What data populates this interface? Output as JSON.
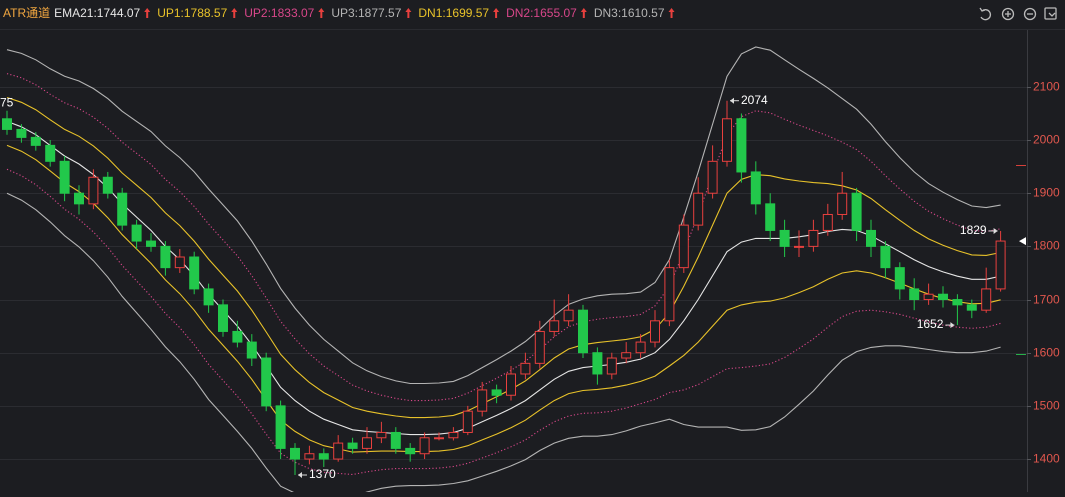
{
  "chart_data": {
    "type": "candlestick",
    "title": "ATR通道",
    "ylim": [
      1338,
      2207
    ],
    "yticks": [
      1400,
      1500,
      1600,
      1700,
      1800,
      1900,
      2000,
      2100
    ],
    "grid": true,
    "up_color": "#e8403e",
    "down_color": "#22c84b",
    "candles": {
      "open": [
        2040,
        2020,
        2005,
        1990,
        1960,
        1900,
        1880,
        1930,
        1900,
        1840,
        1810,
        1800,
        1760,
        1780,
        1720,
        1690,
        1640,
        1620,
        1590,
        1500,
        1420,
        1400,
        1410,
        1400,
        1430,
        1420,
        1440,
        1450,
        1420,
        1410,
        1440,
        1440,
        1450,
        1490,
        1530,
        1520,
        1560,
        1580,
        1640,
        1660,
        1680,
        1600,
        1560,
        1590,
        1600,
        1620,
        1660,
        1760,
        1840,
        1900,
        1960,
        2040,
        1940,
        1880,
        1830,
        1800,
        1800,
        1830,
        1860,
        1900,
        1830,
        1800,
        1760,
        1720,
        1700,
        1710,
        1700,
        1690,
        1680,
        1720
      ],
      "high": [
        2055,
        2030,
        2015,
        2000,
        1970,
        1915,
        1945,
        1940,
        1910,
        1850,
        1825,
        1810,
        1795,
        1790,
        1730,
        1700,
        1660,
        1635,
        1600,
        1510,
        1430,
        1425,
        1420,
        1445,
        1440,
        1460,
        1470,
        1460,
        1430,
        1450,
        1450,
        1460,
        1500,
        1545,
        1540,
        1575,
        1600,
        1660,
        1700,
        1710,
        1690,
        1610,
        1600,
        1620,
        1635,
        1680,
        1775,
        1860,
        1930,
        1990,
        2074,
        2050,
        1960,
        1900,
        1850,
        1830,
        1850,
        1880,
        1940,
        1910,
        1850,
        1810,
        1770,
        1740,
        1730,
        1725,
        1710,
        1700,
        1760,
        1829
      ],
      "low": [
        2010,
        1995,
        1980,
        1950,
        1885,
        1860,
        1870,
        1890,
        1830,
        1795,
        1790,
        1745,
        1750,
        1710,
        1675,
        1630,
        1610,
        1575,
        1490,
        1400,
        1370,
        1390,
        1385,
        1395,
        1410,
        1410,
        1430,
        1410,
        1395,
        1400,
        1435,
        1435,
        1445,
        1480,
        1505,
        1510,
        1550,
        1570,
        1630,
        1650,
        1590,
        1540,
        1550,
        1580,
        1590,
        1610,
        1650,
        1750,
        1830,
        1890,
        1950,
        1920,
        1860,
        1810,
        1780,
        1780,
        1790,
        1820,
        1850,
        1810,
        1780,
        1740,
        1700,
        1680,
        1690,
        1685,
        1652,
        1665,
        1675,
        1715
      ],
      "close": [
        2020,
        2005,
        1990,
        1960,
        1900,
        1880,
        1930,
        1900,
        1840,
        1810,
        1800,
        1760,
        1780,
        1720,
        1690,
        1640,
        1620,
        1590,
        1500,
        1420,
        1400,
        1410,
        1400,
        1430,
        1420,
        1440,
        1450,
        1420,
        1410,
        1440,
        1440,
        1450,
        1490,
        1530,
        1520,
        1560,
        1580,
        1640,
        1660,
        1680,
        1600,
        1560,
        1590,
        1600,
        1620,
        1660,
        1760,
        1840,
        1900,
        1960,
        2040,
        1940,
        1880,
        1830,
        1800,
        1800,
        1830,
        1860,
        1900,
        1830,
        1800,
        1760,
        1720,
        1700,
        1710,
        1700,
        1690,
        1680,
        1720,
        1810
      ]
    },
    "series": [
      {
        "name": "EMA21:1744.07",
        "color": "#e6e6e6",
        "style": "solid",
        "values": [
          2035,
          2025,
          2010,
          1990,
          1970,
          1955,
          1935,
          1910,
          1880,
          1855,
          1830,
          1800,
          1775,
          1745,
          1710,
          1680,
          1650,
          1615,
          1575,
          1535,
          1510,
          1490,
          1475,
          1465,
          1455,
          1452,
          1450,
          1448,
          1446,
          1446,
          1447,
          1450,
          1458,
          1470,
          1482,
          1495,
          1510,
          1530,
          1550,
          1565,
          1572,
          1575,
          1578,
          1582,
          1588,
          1600,
          1625,
          1660,
          1700,
          1745,
          1790,
          1808,
          1815,
          1815,
          1815,
          1818,
          1822,
          1828,
          1832,
          1830,
          1820,
          1805,
          1790,
          1775,
          1762,
          1752,
          1744,
          1738,
          1738,
          1744.07
        ]
      },
      {
        "name": "UP1:1788.57",
        "color": "#e8c22a",
        "style": "solid",
        "values": [
          2080,
          2071,
          2057,
          2038,
          2020,
          2007,
          1989,
          1966,
          1938,
          1915,
          1892,
          1863,
          1839,
          1810,
          1776,
          1746,
          1716,
          1680,
          1639,
          1597,
          1568,
          1544,
          1525,
          1511,
          1497,
          1490,
          1485,
          1481,
          1478,
          1478,
          1479,
          1482,
          1491,
          1504,
          1517,
          1531,
          1547,
          1568,
          1590,
          1607,
          1615,
          1619,
          1622,
          1625,
          1630,
          1644,
          1675,
          1725,
          1780,
          1840,
          1900,
          1926,
          1935,
          1933,
          1927,
          1923,
          1920,
          1918,
          1914,
          1906,
          1890,
          1869,
          1849,
          1830,
          1814,
          1802,
          1792,
          1784,
          1783,
          1788.57
        ]
      },
      {
        "name": "UP2:1833.07",
        "color": "#d8478a",
        "style": "dotted",
        "values": [
          2125,
          2117,
          2104,
          2086,
          2070,
          2059,
          2043,
          2022,
          1996,
          1975,
          1954,
          1926,
          1903,
          1875,
          1842,
          1812,
          1782,
          1745,
          1703,
          1659,
          1626,
          1598,
          1575,
          1557,
          1539,
          1528,
          1520,
          1514,
          1510,
          1510,
          1511,
          1514,
          1524,
          1538,
          1552,
          1567,
          1584,
          1606,
          1630,
          1649,
          1658,
          1663,
          1666,
          1668,
          1672,
          1688,
          1725,
          1790,
          1860,
          1935,
          2010,
          2044,
          2055,
          2051,
          2039,
          2028,
          2018,
          2008,
          1996,
          1982,
          1960,
          1933,
          1908,
          1885,
          1866,
          1852,
          1840,
          1830,
          1828,
          1833.07
        ]
      },
      {
        "name": "UP3:1877.57",
        "color": "#b4b4b4",
        "style": "solid",
        "values": [
          2170,
          2163,
          2151,
          2134,
          2120,
          2111,
          2097,
          2078,
          2054,
          2035,
          2016,
          1989,
          1967,
          1940,
          1908,
          1878,
          1848,
          1810,
          1767,
          1721,
          1684,
          1652,
          1625,
          1603,
          1581,
          1566,
          1555,
          1547,
          1542,
          1542,
          1543,
          1546,
          1557,
          1572,
          1587,
          1603,
          1621,
          1644,
          1670,
          1691,
          1701,
          1707,
          1710,
          1711,
          1714,
          1732,
          1775,
          1855,
          1940,
          2030,
          2120,
          2162,
          2175,
          2169,
          2151,
          2133,
          2116,
          2098,
          2078,
          2058,
          2030,
          1997,
          1967,
          1940,
          1918,
          1902,
          1888,
          1876,
          1873,
          1877.57
        ]
      },
      {
        "name": "DN1:1699.57",
        "color": "#e8c22a",
        "style": "solid",
        "values": [
          1990,
          1979,
          1963,
          1942,
          1920,
          1903,
          1881,
          1854,
          1822,
          1795,
          1768,
          1737,
          1711,
          1680,
          1644,
          1614,
          1584,
          1550,
          1511,
          1473,
          1452,
          1436,
          1425,
          1419,
          1413,
          1414,
          1415,
          1415,
          1414,
          1414,
          1415,
          1418,
          1425,
          1436,
          1447,
          1459,
          1473,
          1492,
          1510,
          1523,
          1529,
          1531,
          1534,
          1539,
          1546,
          1556,
          1575,
          1595,
          1620,
          1650,
          1680,
          1690,
          1695,
          1697,
          1703,
          1713,
          1724,
          1738,
          1750,
          1754,
          1750,
          1741,
          1731,
          1720,
          1710,
          1702,
          1696,
          1692,
          1693,
          1699.57
        ]
      },
      {
        "name": "DN2:1655.07",
        "color": "#d8478a",
        "style": "dotted",
        "values": [
          1945,
          1933,
          1916,
          1894,
          1870,
          1851,
          1827,
          1798,
          1764,
          1735,
          1706,
          1674,
          1647,
          1615,
          1578,
          1548,
          1518,
          1485,
          1447,
          1411,
          1394,
          1382,
          1375,
          1373,
          1371,
          1376,
          1380,
          1382,
          1382,
          1382,
          1383,
          1386,
          1392,
          1402,
          1412,
          1423,
          1436,
          1454,
          1470,
          1481,
          1486,
          1487,
          1490,
          1496,
          1504,
          1512,
          1525,
          1530,
          1540,
          1555,
          1570,
          1572,
          1575,
          1579,
          1591,
          1608,
          1626,
          1648,
          1668,
          1678,
          1680,
          1677,
          1672,
          1665,
          1658,
          1652,
          1648,
          1646,
          1648,
          1655.07
        ]
      },
      {
        "name": "DN3:1610.57",
        "color": "#b4b4b4",
        "style": "solid",
        "values": [
          1900,
          1887,
          1869,
          1846,
          1820,
          1799,
          1773,
          1742,
          1706,
          1675,
          1644,
          1611,
          1583,
          1550,
          1512,
          1482,
          1452,
          1420,
          1383,
          1349,
          1336,
          1328,
          1325,
          1327,
          1329,
          1338,
          1345,
          1349,
          1350,
          1350,
          1351,
          1354,
          1359,
          1368,
          1377,
          1387,
          1399,
          1416,
          1430,
          1439,
          1443,
          1443,
          1446,
          1453,
          1462,
          1468,
          1475,
          1465,
          1460,
          1460,
          1460,
          1454,
          1455,
          1461,
          1479,
          1503,
          1528,
          1558,
          1586,
          1602,
          1610,
          1613,
          1613,
          1610,
          1606,
          1602,
          1600,
          1600,
          1603,
          1610.57
        ]
      }
    ],
    "annotations": [
      "75"
    ]
  }
}
